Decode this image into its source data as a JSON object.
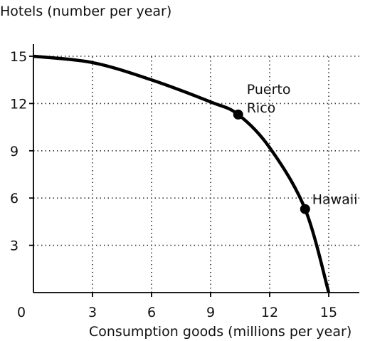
{
  "chart_data": {
    "type": "line",
    "ylabel": "Hotels (number per year)",
    "xlabel": "Consumption goods (millions per year)",
    "origin_label": "0",
    "xlim": [
      0,
      15
    ],
    "ylim": [
      0,
      15
    ],
    "x_ticks": [
      3,
      6,
      9,
      12,
      15
    ],
    "y_ticks": [
      3,
      6,
      9,
      12,
      15
    ],
    "grid": "dotted, at tick marks",
    "series": [
      {
        "x": [
          0,
          3,
          6,
          9,
          10.4,
          12,
          13.8,
          15
        ],
        "y": [
          15,
          14.6,
          13.5,
          12.1,
          11.3,
          9.2,
          5.3,
          0
        ]
      }
    ],
    "points": [
      {
        "label_lines": [
          "Puerto",
          "Rico"
        ],
        "x": 10.4,
        "y": 11.3
      },
      {
        "label_lines": [
          "Hawaii"
        ],
        "x": 13.8,
        "y": 5.3
      }
    ]
  }
}
